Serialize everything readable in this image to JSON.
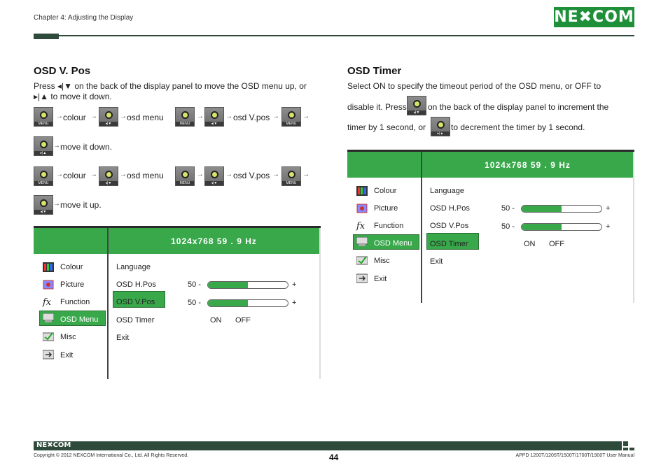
{
  "header": {
    "chapter": "Chapter 4: Adjusting the Display",
    "logo": "NE✖COM"
  },
  "left": {
    "title": "OSD V. Pos",
    "intro_line1": "Press ◂|▼ on the back of the display panel to move the OSD menu up, or",
    "intro_line2": "▸|▲ to move it down.",
    "seq_labels": [
      "colour",
      "osd menu",
      "osd V.pos"
    ],
    "move_down": "move it down.",
    "move_up": "move it up."
  },
  "right": {
    "title": "OSD Timer",
    "line1": "Select ON to specify the timeout period of the OSD menu, or OFF to",
    "line2a": "disable it. Press",
    "line2b": "on the back of the display panel to increment the",
    "line3a": "timer by 1 second, or",
    "line3b": "to decrement the timer by 1 second."
  },
  "buttons": {
    "menu": "MENU",
    "down": "◂|▼",
    "up": "▸|▲"
  },
  "osd": {
    "resolution": "1024x768  59  . 9 Hz",
    "menu_items": [
      "Colour",
      "Picture",
      "Function",
      "OSD Menu",
      "Misc",
      "Exit"
    ],
    "sub_items": [
      "Language",
      "OSD H.Pos",
      "OSD V.Pos",
      "OSD Timer",
      "Exit"
    ],
    "h_value": "50  -",
    "v_value": "50 -",
    "plus": "+",
    "on": "ON",
    "off": "OFF",
    "h_fill": 0.5,
    "v_fill": 0.5
  },
  "footer": {
    "logo": "NE✖COM",
    "copyright": "Copyright © 2012 NEXCOM International Co., Ltd. All Rights Reserved.",
    "page": "44",
    "manual": "APPD 1200T/1205T/1500T/1700T/1900T User Manual"
  },
  "colors": {
    "brand_green": "#39a84b",
    "dark_rule": "#2e4a3a"
  }
}
